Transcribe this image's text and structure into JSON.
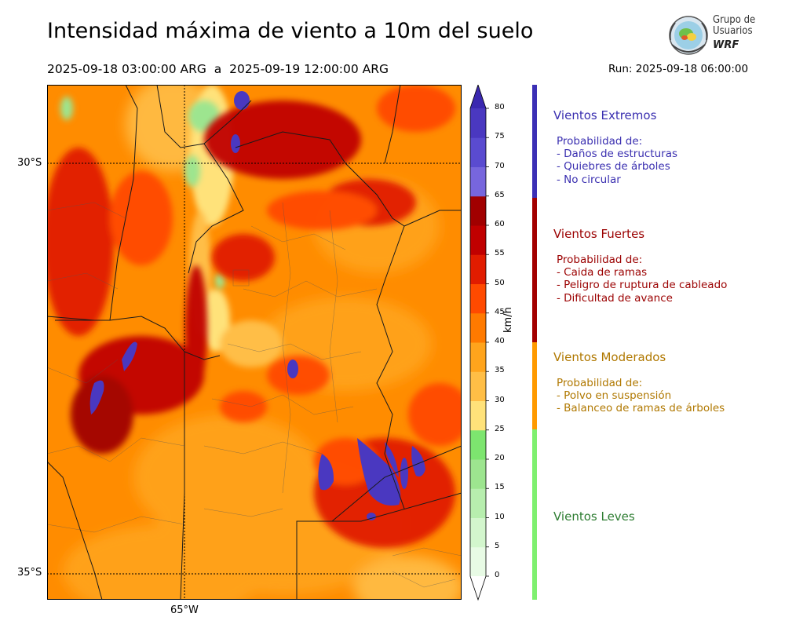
{
  "header": {
    "title": "Intensidad máxima de viento a 10m del suelo",
    "period": "2025-09-18 03:00:00 ARG  a  2025-09-19 12:00:00 ARG",
    "run": "Run: 2025-09-18 06:00:00"
  },
  "logo": {
    "line1": "Grupo de",
    "line2": "Usuarios",
    "line3": "WRF"
  },
  "map": {
    "lat_labels": [
      "30°S",
      "35°S"
    ],
    "lon_labels": [
      "65°W"
    ]
  },
  "colorbar": {
    "label": "km/h",
    "ticks": [
      "0",
      "5",
      "10",
      "15",
      "20",
      "25",
      "30",
      "35",
      "40",
      "45",
      "50",
      "55",
      "60",
      "65",
      "70",
      "75",
      "80"
    ],
    "colors": [
      "#e8fbe5",
      "#d3f6cd",
      "#b7eeae",
      "#9de58f",
      "#7de56f",
      "#ffe27a",
      "#ffbe46",
      "#ffa41c",
      "#ff7a00",
      "#ff4a00",
      "#e11c00",
      "#c00000",
      "#a10000",
      "#7766dd",
      "#5a4bd0",
      "#4a38c0",
      "#3a28b0"
    ]
  },
  "categories": [
    {
      "title": "Vientos Extremos",
      "color": "#3a2fb0",
      "lines": [
        "Probabilidad de:",
        "- Daños de estructuras",
        "- Quiebres de árboles",
        "- No circular"
      ]
    },
    {
      "title": "Vientos Fuertes",
      "color": "#9b0000",
      "lines": [
        "Probabilidad de:",
        "- Caida de ramas",
        "- Peligro de ruptura de cableado",
        "- Dificultad de avance"
      ]
    },
    {
      "title": "Vientos Moderados",
      "color": "#b07800",
      "lines": [
        "Probabilidad de:",
        "- Polvo en suspensión",
        "- Balanceo de ramas de árboles"
      ]
    },
    {
      "title": "Vientos Leves",
      "color": "#2e7d32",
      "lines": []
    }
  ],
  "category_bar_colors": [
    "#3b2fb5",
    "#a30000",
    "#ff9a00",
    "#7ef06f"
  ]
}
